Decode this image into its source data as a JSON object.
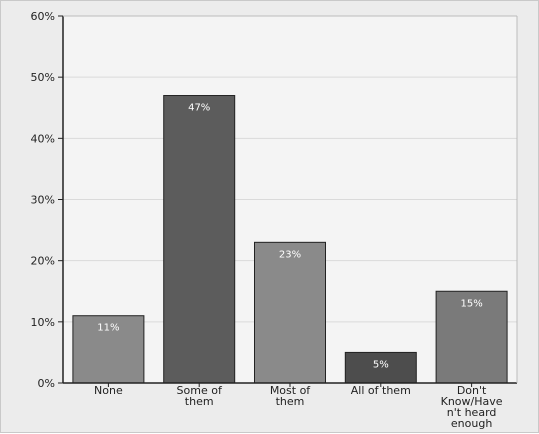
{
  "chart_data": {
    "type": "bar",
    "categories": [
      "None",
      "Some of them",
      "Most of them",
      "All of them",
      "Don't Know/Haven't heard enough"
    ],
    "category_lines": [
      [
        "None"
      ],
      [
        "Some of",
        "them"
      ],
      [
        "Most of",
        "them"
      ],
      [
        "All of them"
      ],
      [
        "Don't",
        "Know/Have",
        "n't heard",
        "enough"
      ]
    ],
    "values": [
      11,
      47,
      23,
      5,
      15
    ],
    "value_labels": [
      "11%",
      "47%",
      "23%",
      "5%",
      "15%"
    ],
    "ylim": [
      0,
      60
    ],
    "yticks": [
      0,
      10,
      20,
      30,
      40,
      50,
      60
    ],
    "ytick_labels": [
      "0%",
      "10%",
      "20%",
      "30%",
      "40%",
      "50%",
      "60%"
    ],
    "grid": true,
    "legend": "none",
    "colors": {
      "page_bg": "#ececec",
      "plot_bg": "#f4f4f4",
      "grid": "#dadada",
      "axis": "#222222",
      "bar_light": "#8a8a8a",
      "bar_dark": "#5c5c5c",
      "bar_darkest": "#4d4d4d"
    },
    "bar_colors": [
      "#8a8a8a",
      "#5c5c5c",
      "#8a8a8a",
      "#4d4d4d",
      "#7a7a7a"
    ]
  }
}
